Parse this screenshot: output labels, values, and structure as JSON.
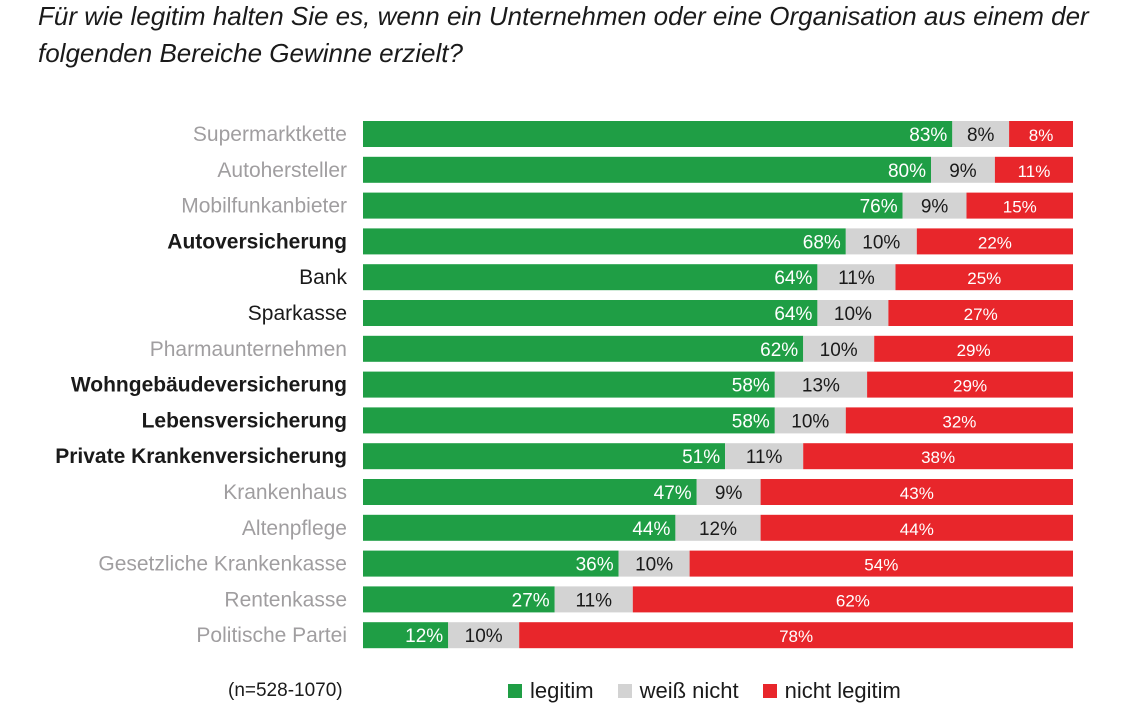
{
  "title": "Für wie legitim halten Sie es, wenn ein Unternehmen oder eine Organisation aus einem der folgenden Bereiche Gewinne erzielt?",
  "footer_note": "(n=528-1070)",
  "colors": {
    "legitim": "#1f9e45",
    "weiss_nicht": "#d3d3d3",
    "nicht_legitim": "#e8262b",
    "label_muted": "#a09ea0",
    "label_bold": "#1a1a1a"
  },
  "legend": [
    {
      "label": "legitim",
      "color": "#1f9e45"
    },
    {
      "label": "weiß nicht",
      "color": "#d3d3d3"
    },
    {
      "label": "nicht legitim",
      "color": "#e8262b"
    }
  ],
  "chart_data": {
    "type": "bar",
    "orientation": "horizontal",
    "stacked": true,
    "percent_scale": true,
    "title": "Für wie legitim halten Sie es, wenn ein Unternehmen oder eine Organisation aus einem der folgenden Bereiche Gewinne erzielt?",
    "categories": [
      "Supermarktkette",
      "Autohersteller",
      "Mobilfunkanbieter",
      "Autoversicherung",
      "Bank",
      "Sparkasse",
      "Pharmaunternehmen",
      "Wohngebäudeversicherung",
      "Lebensversicherung",
      "Private Krankenversicherung",
      "Krankenhaus",
      "Altenpflege",
      "Gesetzliche Krankenkasse",
      "Rentenkasse",
      "Politische Partei"
    ],
    "category_style": [
      "muted",
      "muted",
      "muted",
      "bold",
      "dark",
      "dark",
      "muted",
      "bold",
      "bold",
      "bold",
      "muted",
      "muted",
      "muted",
      "muted",
      "muted"
    ],
    "series": [
      {
        "name": "legitim",
        "values": [
          83,
          80,
          76,
          68,
          64,
          64,
          62,
          58,
          58,
          51,
          47,
          44,
          36,
          27,
          12
        ],
        "labels": [
          "83%",
          "80%",
          "76%",
          "68%",
          "64%",
          "64%",
          "62%",
          "58%",
          "58%",
          "51%",
          "47%",
          "44%",
          "36%",
          "27%",
          "12%"
        ]
      },
      {
        "name": "weiß nicht",
        "values": [
          8,
          9,
          9,
          10,
          11,
          10,
          10,
          13,
          10,
          11,
          9,
          12,
          10,
          11,
          10
        ],
        "labels": [
          "8%",
          "9%",
          "9%",
          "10%",
          "11%",
          "10%",
          "10%",
          "13%",
          "10%",
          "11%",
          "9%",
          "12%",
          "10%",
          "11%",
          "10%"
        ]
      },
      {
        "name": "nicht legitim",
        "values": [
          8,
          11,
          15,
          22,
          25,
          27,
          29,
          29,
          32,
          38,
          43,
          44,
          54,
          62,
          78
        ],
        "labels": [
          "8%",
          "11%",
          "15%",
          "22%",
          "25%",
          "27%",
          "29%",
          "29%",
          "32%",
          "38%",
          "43%",
          "44%",
          "54%",
          "62%",
          "78%"
        ]
      }
    ],
    "legend_position": "bottom",
    "grid": false
  }
}
